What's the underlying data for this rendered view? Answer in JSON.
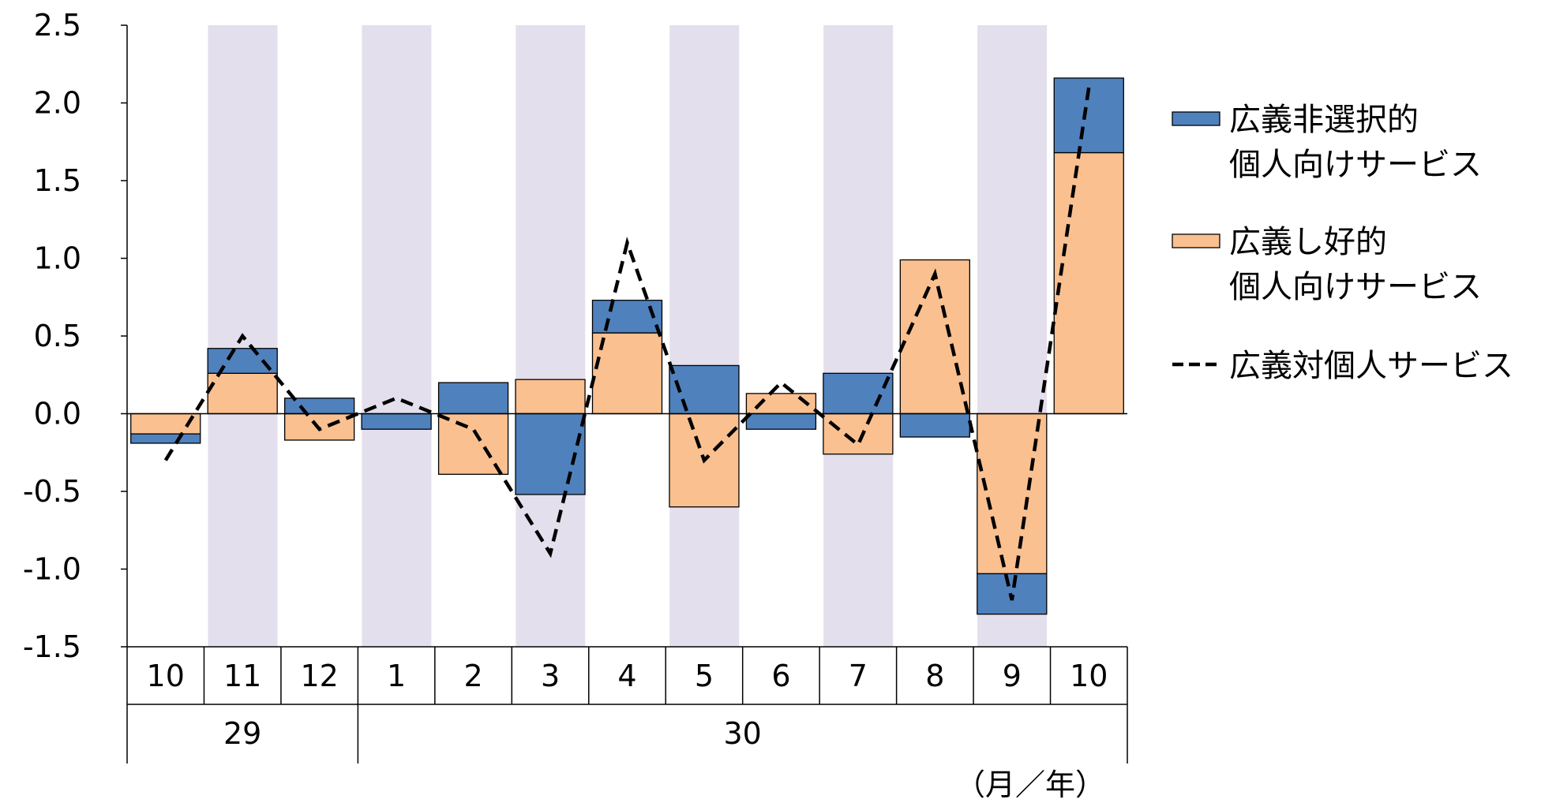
{
  "chart_data": {
    "type": "bar",
    "stacked": true,
    "title": "",
    "xlabel": "",
    "ylabel": "",
    "ylim": [
      -1.5,
      2.5
    ],
    "yticks": [
      "2.5",
      "2.0",
      "1.5",
      "1.0",
      "0.5",
      "0.0",
      "-0.5",
      "-1.0",
      "-1.5"
    ],
    "ytick_values": [
      2.5,
      2.0,
      1.5,
      1.0,
      0.5,
      0.0,
      -0.5,
      -1.0,
      -1.5
    ],
    "categories": [
      "10",
      "11",
      "12",
      "1",
      "2",
      "3",
      "4",
      "5",
      "6",
      "7",
      "8",
      "9",
      "10"
    ],
    "year_groups": [
      {
        "label": "29",
        "start": 0,
        "end": 2
      },
      {
        "label": "30",
        "start": 3,
        "end": 12
      }
    ],
    "unit_label": "（月／年）",
    "shaded_categories": [
      1,
      3,
      5,
      7,
      9,
      11
    ],
    "series": [
      {
        "name": "広義非選択的個人向けサービス",
        "legend_lines": [
          "広義非選択的",
          "個人向けサービス"
        ],
        "kind": "bar",
        "color": "#4f81bd",
        "values": [
          -0.06,
          0.16,
          0.1,
          -0.1,
          0.2,
          -0.52,
          0.21,
          0.31,
          -0.1,
          0.26,
          -0.15,
          -0.26,
          0.48
        ]
      },
      {
        "name": "広義し好的個人向けサービス",
        "legend_lines": [
          "広義し好的",
          "個人向けサービス"
        ],
        "kind": "bar",
        "color": "#fac090",
        "values": [
          -0.13,
          0.26,
          -0.17,
          0.0,
          -0.39,
          0.22,
          0.52,
          -0.6,
          0.13,
          -0.26,
          0.99,
          -1.03,
          1.68
        ]
      },
      {
        "name": "広義対個人サービス",
        "legend_lines": [
          "広義対個人サービス"
        ],
        "kind": "line",
        "style": "dashed",
        "color": "#000000",
        "values": [
          -0.3,
          0.5,
          -0.1,
          0.1,
          -0.1,
          -0.9,
          1.1,
          -0.3,
          0.2,
          -0.2,
          0.9,
          -1.2,
          2.1
        ]
      }
    ],
    "grid": false,
    "shading_color": "#e4dfec",
    "legend_position": "right"
  }
}
